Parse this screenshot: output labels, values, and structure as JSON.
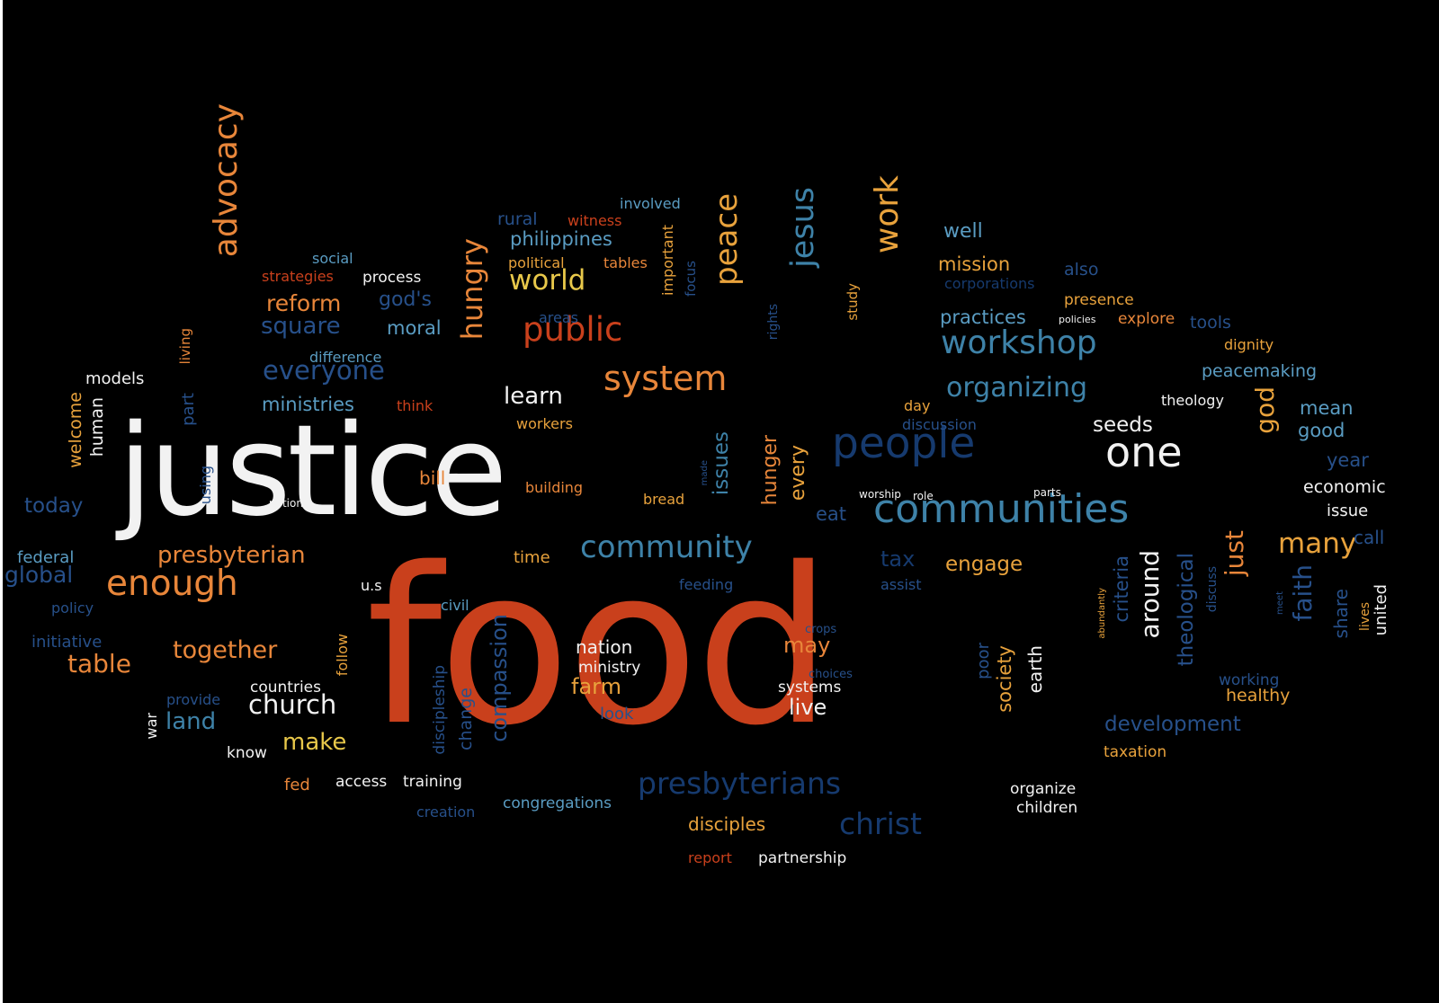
{
  "colors": {
    "background": "#000000",
    "white": "#f2f2f2",
    "orange": "#e8863a",
    "red": "#c9401c",
    "gold": "#e8a23c",
    "yellow": "#e8c84a",
    "blue": "#3e82a8",
    "navy": "#27508a",
    "darkblue": "#163a6e",
    "lightblue": "#5a9cc2"
  },
  "words": [
    {
      "text": "justice",
      "color": "white",
      "weight": 101
    },
    {
      "text": "food",
      "color": "red",
      "weight": 100
    },
    {
      "text": "people",
      "color": "darkblue",
      "weight": 60
    },
    {
      "text": "one",
      "color": "white",
      "weight": 58
    },
    {
      "text": "communities",
      "color": "blue",
      "weight": 55
    },
    {
      "text": "enough",
      "color": "orange",
      "weight": 48
    },
    {
      "text": "system",
      "color": "orange",
      "weight": 47
    },
    {
      "text": "public",
      "color": "red",
      "weight": 46
    },
    {
      "text": "workshop",
      "color": "blue",
      "weight": 45
    },
    {
      "text": "advocacy",
      "color": "orange",
      "weight": 44
    },
    {
      "text": "work",
      "color": "gold",
      "weight": 44
    },
    {
      "text": "jesus",
      "color": "blue",
      "weight": 43
    },
    {
      "text": "peace",
      "color": "gold",
      "weight": 42
    },
    {
      "text": "community",
      "color": "blue",
      "weight": 41
    },
    {
      "text": "presbyterians",
      "color": "darkblue",
      "weight": 40
    },
    {
      "text": "christ",
      "color": "darkblue",
      "weight": 40
    },
    {
      "text": "hungry",
      "color": "orange",
      "weight": 39
    },
    {
      "text": "world",
      "color": "yellow",
      "weight": 38
    },
    {
      "text": "many",
      "color": "gold",
      "weight": 37
    },
    {
      "text": "organizing",
      "color": "blue",
      "weight": 36
    },
    {
      "text": "everyone",
      "color": "navy",
      "weight": 35
    },
    {
      "text": "church",
      "color": "white",
      "weight": 35
    },
    {
      "text": "god",
      "color": "gold",
      "weight": 34
    },
    {
      "text": "around",
      "color": "white",
      "weight": 34
    },
    {
      "text": "faith",
      "color": "navy",
      "weight": 34
    },
    {
      "text": "just",
      "color": "orange",
      "weight": 33
    },
    {
      "text": "table",
      "color": "orange",
      "weight": 33
    },
    {
      "text": "together",
      "color": "orange",
      "weight": 32
    },
    {
      "text": "presbyterian",
      "color": "orange",
      "weight": 31
    },
    {
      "text": "land",
      "color": "blue",
      "weight": 31
    },
    {
      "text": "square",
      "color": "navy",
      "weight": 30
    },
    {
      "text": "make",
      "color": "yellow",
      "weight": 30
    },
    {
      "text": "learn",
      "color": "white",
      "weight": 30
    },
    {
      "text": "global",
      "color": "navy",
      "weight": 29
    },
    {
      "text": "reform",
      "color": "orange",
      "weight": 29
    },
    {
      "text": "compassion",
      "color": "navy",
      "weight": 28
    },
    {
      "text": "live",
      "color": "white",
      "weight": 28
    },
    {
      "text": "farm",
      "color": "gold",
      "weight": 28
    },
    {
      "text": "may",
      "color": "orange",
      "weight": 28
    },
    {
      "text": "tax",
      "color": "darkblue",
      "weight": 28
    },
    {
      "text": "issues",
      "color": "blue",
      "weight": 27
    },
    {
      "text": "today",
      "color": "navy",
      "weight": 27
    },
    {
      "text": "development",
      "color": "navy",
      "weight": 27
    },
    {
      "text": "engage",
      "color": "gold",
      "weight": 27
    },
    {
      "text": "seeds",
      "color": "white",
      "weight": 26
    },
    {
      "text": "theological",
      "color": "navy",
      "weight": 26
    },
    {
      "text": "well",
      "color": "lightblue",
      "weight": 25
    },
    {
      "text": "god's",
      "color": "navy",
      "weight": 25
    },
    {
      "text": "hunger",
      "color": "orange",
      "weight": 25
    },
    {
      "text": "every",
      "color": "gold",
      "weight": 25
    },
    {
      "text": "practices",
      "color": "lightblue",
      "weight": 24
    },
    {
      "text": "criteria",
      "color": "navy",
      "weight": 24
    },
    {
      "text": "moral",
      "color": "lightblue",
      "weight": 24
    },
    {
      "text": "ministries",
      "color": "lightblue",
      "weight": 24
    },
    {
      "text": "good",
      "color": "lightblue",
      "weight": 24
    },
    {
      "text": "eat",
      "color": "navy",
      "weight": 24
    },
    {
      "text": "mean",
      "color": "lightblue",
      "weight": 24
    },
    {
      "text": "society",
      "color": "gold",
      "weight": 23
    },
    {
      "text": "philippines",
      "color": "lightblue",
      "weight": 23
    },
    {
      "text": "year",
      "color": "navy",
      "weight": 23
    },
    {
      "text": "mission",
      "color": "gold",
      "weight": 23
    },
    {
      "text": "nation",
      "color": "white",
      "weight": 22
    },
    {
      "text": "bill",
      "color": "orange",
      "weight": 22
    },
    {
      "text": "share",
      "color": "navy",
      "weight": 22
    },
    {
      "text": "earth",
      "color": "white",
      "weight": 22
    },
    {
      "text": "call",
      "color": "navy",
      "weight": 22
    },
    {
      "text": "disciples",
      "color": "gold",
      "weight": 22
    },
    {
      "text": "economic",
      "color": "white",
      "weight": 21
    },
    {
      "text": "peacemaking",
      "color": "lightblue",
      "weight": 21
    },
    {
      "text": "change",
      "color": "navy",
      "weight": 21
    },
    {
      "text": "welcome",
      "color": "gold",
      "weight": 21
    },
    {
      "text": "healthy",
      "color": "gold",
      "weight": 21
    },
    {
      "text": "rural",
      "color": "navy",
      "weight": 21
    },
    {
      "text": "human",
      "color": "white",
      "weight": 21
    },
    {
      "text": "tools",
      "color": "navy",
      "weight": 21
    },
    {
      "text": "also",
      "color": "navy",
      "weight": 21
    },
    {
      "text": "models",
      "color": "white",
      "weight": 20
    },
    {
      "text": "time",
      "color": "gold",
      "weight": 20
    },
    {
      "text": "issue",
      "color": "white",
      "weight": 20
    },
    {
      "text": "fed",
      "color": "orange",
      "weight": 20
    },
    {
      "text": "united",
      "color": "white",
      "weight": 20
    },
    {
      "text": "initiative",
      "color": "navy",
      "weight": 19
    },
    {
      "text": "look",
      "color": "navy",
      "weight": 19
    },
    {
      "text": "federal",
      "color": "lightblue",
      "weight": 19
    },
    {
      "text": "part",
      "color": "navy",
      "weight": 19
    },
    {
      "text": "poor",
      "color": "navy",
      "weight": 19
    },
    {
      "text": "training",
      "color": "white",
      "weight": 18
    },
    {
      "text": "access",
      "color": "white",
      "weight": 18
    },
    {
      "text": "countries",
      "color": "white",
      "weight": 18
    },
    {
      "text": "congregations",
      "color": "lightblue",
      "weight": 18
    },
    {
      "text": "systems",
      "color": "white",
      "weight": 18
    },
    {
      "text": "ministry",
      "color": "white",
      "weight": 18
    },
    {
      "text": "presence",
      "color": "gold",
      "weight": 18
    },
    {
      "text": "explore",
      "color": "orange",
      "weight": 18
    },
    {
      "text": "organize",
      "color": "white",
      "weight": 18
    },
    {
      "text": "children",
      "color": "white",
      "weight": 18
    },
    {
      "text": "process",
      "color": "white",
      "weight": 18
    },
    {
      "text": "partnership",
      "color": "white",
      "weight": 18
    },
    {
      "text": "taxation",
      "color": "gold",
      "weight": 18
    },
    {
      "text": "discipleship",
      "color": "navy",
      "weight": 18
    },
    {
      "text": "working",
      "color": "navy",
      "weight": 18
    },
    {
      "text": "know",
      "color": "white",
      "weight": 18
    },
    {
      "text": "creation",
      "color": "navy",
      "weight": 17
    },
    {
      "text": "report",
      "color": "red",
      "weight": 17
    },
    {
      "text": "dignity",
      "color": "gold",
      "weight": 17
    },
    {
      "text": "theology",
      "color": "white",
      "weight": 17
    },
    {
      "text": "strategies",
      "color": "red",
      "weight": 17
    },
    {
      "text": "witness",
      "color": "red",
      "weight": 17
    },
    {
      "text": "difference",
      "color": "lightblue",
      "weight": 17
    },
    {
      "text": "social",
      "color": "lightblue",
      "weight": 17
    },
    {
      "text": "building",
      "color": "orange",
      "weight": 17
    },
    {
      "text": "bread",
      "color": "gold",
      "weight": 17
    },
    {
      "text": "civil",
      "color": "lightblue",
      "weight": 17
    },
    {
      "text": "think",
      "color": "red",
      "weight": 17
    },
    {
      "text": "provide",
      "color": "navy",
      "weight": 17
    },
    {
      "text": "policy",
      "color": "navy",
      "weight": 16
    },
    {
      "text": "corporations",
      "color": "darkblue",
      "weight": 16
    },
    {
      "text": "day",
      "color": "gold",
      "weight": 16
    },
    {
      "text": "discussion",
      "color": "navy",
      "weight": 16
    },
    {
      "text": "involved",
      "color": "lightblue",
      "weight": 16
    },
    {
      "text": "political",
      "color": "gold",
      "weight": 16
    },
    {
      "text": "tables",
      "color": "orange",
      "weight": 16
    },
    {
      "text": "workers",
      "color": "gold",
      "weight": 16
    },
    {
      "text": "areas",
      "color": "navy",
      "weight": 16
    },
    {
      "text": "important",
      "color": "gold",
      "weight": 16
    },
    {
      "text": "feeding",
      "color": "navy",
      "weight": 16
    },
    {
      "text": "assist",
      "color": "navy",
      "weight": 16
    },
    {
      "text": "u.s",
      "color": "white",
      "weight": 16
    },
    {
      "text": "using",
      "color": "navy",
      "weight": 16
    },
    {
      "text": "follow",
      "color": "gold",
      "weight": 16
    },
    {
      "text": "war",
      "color": "white",
      "weight": 16
    },
    {
      "text": "study",
      "color": "gold",
      "weight": 15
    },
    {
      "text": "focus",
      "color": "navy",
      "weight": 15
    },
    {
      "text": "living",
      "color": "orange",
      "weight": 15
    },
    {
      "text": "rights",
      "color": "navy",
      "weight": 14
    },
    {
      "text": "discuss",
      "color": "navy",
      "weight": 14
    },
    {
      "text": "lives",
      "color": "gold",
      "weight": 14
    },
    {
      "text": "crops",
      "color": "navy",
      "weight": 12
    },
    {
      "text": "choices",
      "color": "navy",
      "weight": 12
    },
    {
      "text": "notion",
      "color": "white",
      "weight": 11
    },
    {
      "text": "worship",
      "color": "white",
      "weight": 11
    },
    {
      "text": "role",
      "color": "white",
      "weight": 11
    },
    {
      "text": "parts",
      "color": "white",
      "weight": 11
    },
    {
      "text": "policies",
      "color": "white",
      "weight": 10
    },
    {
      "text": "made",
      "color": "navy",
      "weight": 9
    },
    {
      "text": "meet",
      "color": "navy",
      "weight": 9
    },
    {
      "text": "abundantly",
      "color": "gold",
      "weight": 8
    }
  ]
}
